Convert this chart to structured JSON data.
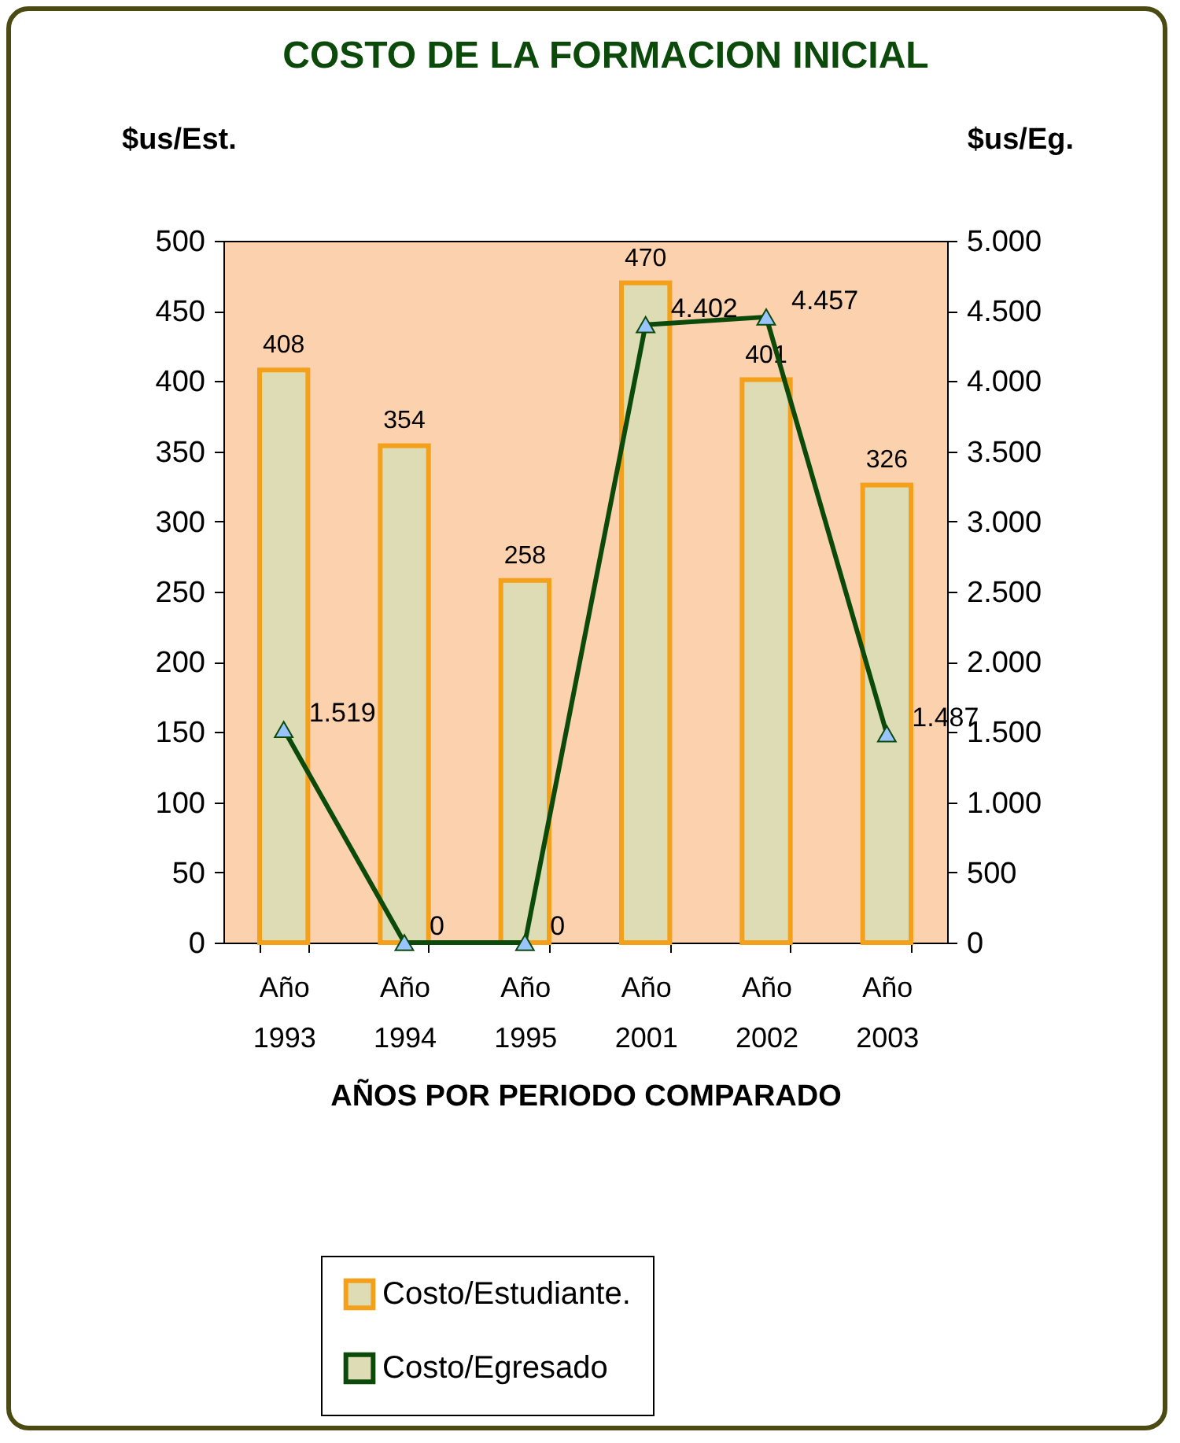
{
  "chart_data": {
    "type": "bar",
    "title": "COSTO DE LA FORMACION INICIAL",
    "xlabel": "AÑOS POR PERIODO COMPARADO",
    "ylabel": "$us/Est.",
    "y2label": "$us/Eg.",
    "categories": [
      "Año 1993",
      "Año 1994",
      "Año 1995",
      "Año 2001",
      "Año 2002",
      "Año 2003"
    ],
    "series": [
      {
        "name": "Costo/Estudiante.",
        "color": "#f5a01a",
        "values": [
          408,
          354,
          258,
          470,
          401,
          326
        ]
      },
      {
        "name": "Costo/Egresado",
        "type": "line",
        "axis": "y2",
        "color": "#0b4a0b",
        "values": [
          1519,
          0,
          0,
          4402,
          4457,
          1487
        ],
        "value_labels": [
          "1.519",
          "0",
          "0",
          "4.402",
          "4.457",
          "1.487"
        ]
      }
    ],
    "data_labels": true,
    "marker": "triangle",
    "legend": "bottom",
    "grid": false,
    "ylim": [
      0,
      500
    ],
    "yticks": [
      0,
      50,
      100,
      150,
      200,
      250,
      300,
      350,
      400,
      450,
      500
    ],
    "y2lim": [
      0,
      5000
    ],
    "y2ticks": [
      0,
      {
        "value": 500,
        "label": "500"
      },
      {
        "value": 1000,
        "label": "1.000"
      },
      {
        "value": 1500,
        "label": "1.500"
      },
      {
        "value": 2000,
        "label": "2.000"
      },
      {
        "value": 2500,
        "label": "2.500"
      },
      {
        "value": 3000,
        "label": "3.000"
      },
      {
        "value": 3500,
        "label": "3.500"
      },
      {
        "value": 4000,
        "label": "4.000"
      },
      {
        "value": 4500,
        "label": "4.500"
      },
      {
        "value": 5000,
        "label": "5.000"
      }
    ]
  }
}
